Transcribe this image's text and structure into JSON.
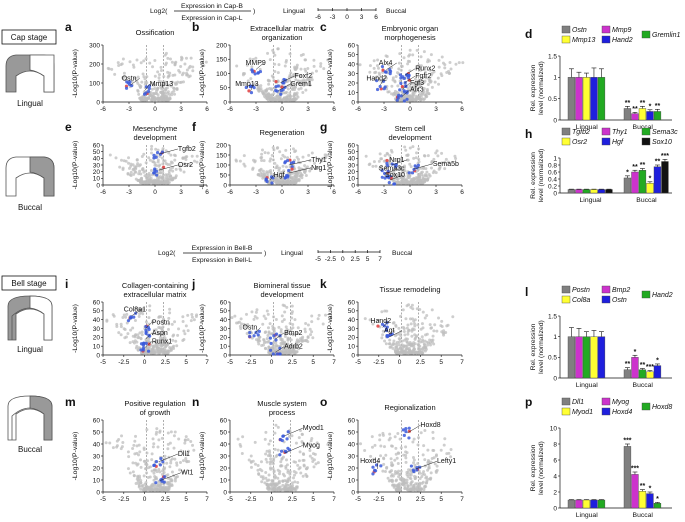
{
  "header_top": {
    "log_prefix": "Log2(",
    "num": "Expression in Cap-B",
    "den": "Expression in Cap-L",
    "suffix": ")",
    "left_label": "Lingual",
    "right_label": "Buccal",
    "ticks": [
      "-6",
      "-3",
      "0",
      "3",
      "6"
    ]
  },
  "header_bell": {
    "log_prefix": "Log2(",
    "num": "Expression in Bell-B",
    "den": "Expression in Bell-L",
    "suffix": ")",
    "left_label": "Lingual",
    "right_label": "Buccal",
    "ticks": [
      "-5",
      "-2.5",
      "0",
      "2.5",
      "5",
      "7"
    ]
  },
  "stages": {
    "cap": "Cap stage",
    "bell": "Bell stage",
    "lingual": "Lingual",
    "buccal": "Buccal"
  },
  "volcano_axis_label": "-Log10(P-value)",
  "volcano_panels": [
    {
      "id": "a",
      "title": [
        "Ossification"
      ],
      "xticks": [
        "-6",
        "-3",
        "0",
        "3",
        "6"
      ],
      "yticks": [
        "0",
        "100",
        "200",
        "300"
      ],
      "genes": [
        "Ostn",
        "Mmp13"
      ]
    },
    {
      "id": "b",
      "title": [
        "Extracellular matrix",
        "organization"
      ],
      "xticks": [
        "-6",
        "-3",
        "0",
        "3",
        "6"
      ],
      "yticks": [
        "0",
        "50",
        "100",
        "150",
        "200"
      ],
      "genes": [
        "MMP9",
        "Mmp13",
        "Foxf2",
        "Grem1"
      ]
    },
    {
      "id": "c",
      "title": [
        "Embryonic organ",
        "morphogenesis"
      ],
      "xticks": [
        "-6",
        "-3",
        "0",
        "3",
        "6"
      ],
      "yticks": [
        "0",
        "10",
        "20",
        "30",
        "40",
        "50",
        "60"
      ],
      "genes": [
        "Alx4",
        "Hand2",
        "Runx2",
        "Fgfr2",
        "Fgf3",
        "Alx3"
      ]
    },
    {
      "id": "e",
      "title": [
        "Mesenchyme",
        "development"
      ],
      "xticks": [
        "-6",
        "-3",
        "0",
        "3",
        "6"
      ],
      "yticks": [
        "0",
        "10",
        "20",
        "30",
        "40",
        "50",
        "60"
      ],
      "genes": [
        "Tgfb2",
        "Osr2"
      ]
    },
    {
      "id": "f",
      "title": [
        "Regeneration"
      ],
      "xticks": [
        "-6",
        "-3",
        "0",
        "3",
        "6"
      ],
      "yticks": [
        "0",
        "50",
        "100",
        "150",
        "200"
      ],
      "genes": [
        "Thy1",
        "Nrg1",
        "Hgf"
      ]
    },
    {
      "id": "g",
      "title": [
        "Stem cell",
        "development"
      ],
      "xticks": [
        "-6",
        "-3",
        "0",
        "3",
        "6"
      ],
      "yticks": [
        "0",
        "10",
        "20",
        "30",
        "40",
        "50",
        "60"
      ],
      "genes": [
        "Nrp1",
        "Sema5b",
        "Sema3c",
        "Sox10"
      ]
    },
    {
      "id": "i",
      "title": [
        "Collagen-containing",
        "extracellular matrix"
      ],
      "xticks": [
        "-5",
        "-2.5",
        "0",
        "2.5",
        "5",
        "7"
      ],
      "yticks": [
        "0",
        "10",
        "20",
        "30",
        "40",
        "50",
        "60"
      ],
      "genes": [
        "Col8a1",
        "Postn",
        "Aspn",
        "Runx1"
      ]
    },
    {
      "id": "j",
      "title": [
        "Biomineral tissue",
        "development"
      ],
      "xticks": [
        "-5",
        "-2.5",
        "0",
        "2.5",
        "5",
        "7"
      ],
      "yticks": [
        "0",
        "10",
        "20",
        "30",
        "40",
        "50",
        "60"
      ],
      "genes": [
        "Ostn",
        "Bmp2",
        "Adrb2"
      ]
    },
    {
      "id": "k",
      "title": [
        "Tissue remodeling"
      ],
      "xticks": [
        "-5",
        "-2.5",
        "0",
        "2.5",
        "5",
        "7"
      ],
      "yticks": [
        "0",
        "10",
        "20",
        "30",
        "40",
        "50",
        "60"
      ],
      "genes": [
        "Hand2",
        "Agt"
      ]
    },
    {
      "id": "m",
      "title": [
        "Positive regulation",
        "of growth"
      ],
      "xticks": [
        "-5",
        "-2.5",
        "0",
        "2.5",
        "5",
        "7"
      ],
      "yticks": [
        "0",
        "10",
        "20",
        "30",
        "40",
        "50",
        "60"
      ],
      "genes": [
        "Dll1",
        "Wt1"
      ]
    },
    {
      "id": "n",
      "title": [
        "Muscle system",
        "process"
      ],
      "xticks": [
        "-5",
        "-2.5",
        "0",
        "2.5",
        "5",
        "7"
      ],
      "yticks": [
        "0",
        "10",
        "20",
        "30",
        "40",
        "50",
        "60"
      ],
      "genes": [
        "Myod1",
        "Myog"
      ]
    },
    {
      "id": "o",
      "title": [
        "Regionalization"
      ],
      "xticks": [
        "-5",
        "-2.5",
        "0",
        "2.5",
        "5",
        "7"
      ],
      "yticks": [
        "0",
        "10",
        "20",
        "30",
        "40",
        "50",
        "60"
      ],
      "genes": [
        "Hoxd8",
        "Lefty1",
        "Hoxd4"
      ]
    }
  ],
  "bar_axis_label": [
    "Rel. expression",
    "level (normalized)"
  ],
  "bar_groups": [
    "Lingual",
    "Buccal"
  ],
  "colors": {
    "gray": "#808080",
    "yellow": "#ffff33",
    "magenta": "#cc33cc",
    "blue": "#1f1fdd",
    "green": "#22aa22",
    "black": "#111111",
    "scatter_gray": "#bdbdbd",
    "scatter_blue": "#3b5bdb",
    "scatter_red": "#e03c3c"
  },
  "chart_data": [
    {
      "id": "d",
      "type": "bar",
      "ylim": [
        0,
        1.5
      ],
      "yticks": [
        "0",
        "0.5",
        "1",
        "1.5"
      ],
      "legend": [
        "Ostn",
        "Mmp9",
        "Mmp13",
        "Hand2",
        "Gremlin1"
      ],
      "series_colors": [
        "gray",
        "magenta",
        "yellow",
        "blue",
        "green"
      ],
      "categories": [
        "Lingual",
        "Buccal"
      ],
      "values": [
        [
          1,
          1,
          1,
          1,
          1
        ],
        [
          0.27,
          0.15,
          0.27,
          0.2,
          0.2
        ]
      ],
      "errors": [
        [
          0.2,
          0.12,
          0.1,
          0.22,
          0.2
        ],
        [
          0.05,
          0.03,
          0.05,
          0.04,
          0.05
        ]
      ],
      "stars": [
        [
          "",
          "",
          "",
          "",
          ""
        ],
        [
          "**",
          "**",
          "**",
          "*",
          "**"
        ]
      ]
    },
    {
      "id": "h",
      "type": "bar",
      "ylim": [
        0,
        1.0
      ],
      "yticks": [
        "0",
        "0.2",
        "0.4",
        "0.6",
        "0.8",
        "1"
      ],
      "legend": [
        "Tgfb2",
        "Thy1",
        "Sema3c",
        "Osr2",
        "Hgf",
        "Sox10"
      ],
      "series_colors": [
        "gray",
        "magenta",
        "green",
        "yellow",
        "blue",
        "black"
      ],
      "categories": [
        "Lingual",
        "Buccal"
      ],
      "values": [
        [
          0.1,
          0.1,
          0.1,
          0.1,
          0.1,
          0.1
        ],
        [
          0.43,
          0.6,
          0.65,
          0.28,
          0.75,
          0.9
        ]
      ],
      "errors": [
        [
          0.01,
          0.01,
          0.01,
          0.01,
          0.01,
          0.01
        ],
        [
          0.06,
          0.05,
          0.05,
          0.04,
          0.05,
          0.06
        ]
      ],
      "stars": [
        [
          "",
          "",
          "",
          "",
          "",
          ""
        ],
        [
          "*",
          "**",
          "**",
          "*",
          "**",
          "***"
        ]
      ]
    },
    {
      "id": "l",
      "type": "bar",
      "ylim": [
        0,
        1.5
      ],
      "yticks": [
        "0",
        "0.5",
        "1",
        "1.5"
      ],
      "legend": [
        "Postn",
        "Bmp2",
        "Hand2",
        "Col8a",
        "Ostn"
      ],
      "series_colors": [
        "gray",
        "magenta",
        "green",
        "yellow",
        "blue"
      ],
      "categories": [
        "Lingual",
        "Buccal"
      ],
      "values": [
        [
          1,
          1,
          1,
          1,
          1
        ],
        [
          0.2,
          0.5,
          0.2,
          0.15,
          0.3
        ]
      ],
      "errors": [
        [
          0.22,
          0.2,
          0.12,
          0.15,
          0.12
        ],
        [
          0.05,
          0.05,
          0.03,
          0.03,
          0.04
        ]
      ],
      "stars": [
        [
          "",
          "",
          "",
          "",
          ""
        ],
        [
          "**",
          "*",
          "**",
          "***",
          "*"
        ]
      ]
    },
    {
      "id": "p",
      "type": "bar",
      "ylim": [
        0,
        10
      ],
      "yticks": [
        "0",
        "2",
        "4",
        "6",
        "8",
        "10"
      ],
      "legend": [
        "Dll1",
        "Myog",
        "Myod1",
        "Hoxd4",
        "Hoxd8"
      ],
      "series_colors": [
        "gray",
        "magenta",
        "yellow",
        "blue",
        "green"
      ],
      "categories": [
        "Lingual",
        "Buccal"
      ],
      "values": [
        [
          1,
          1,
          1,
          1,
          1
        ],
        [
          7.7,
          4.2,
          2.1,
          1.8,
          0.6
        ]
      ],
      "errors": [
        [
          0.05,
          0.05,
          0.05,
          0.05,
          0.05
        ],
        [
          0.3,
          0.3,
          0.2,
          0.2,
          0.1
        ]
      ],
      "stars": [
        [
          "",
          "",
          "",
          "",
          ""
        ],
        [
          "***",
          "***",
          "**",
          "*",
          "*"
        ]
      ]
    }
  ]
}
